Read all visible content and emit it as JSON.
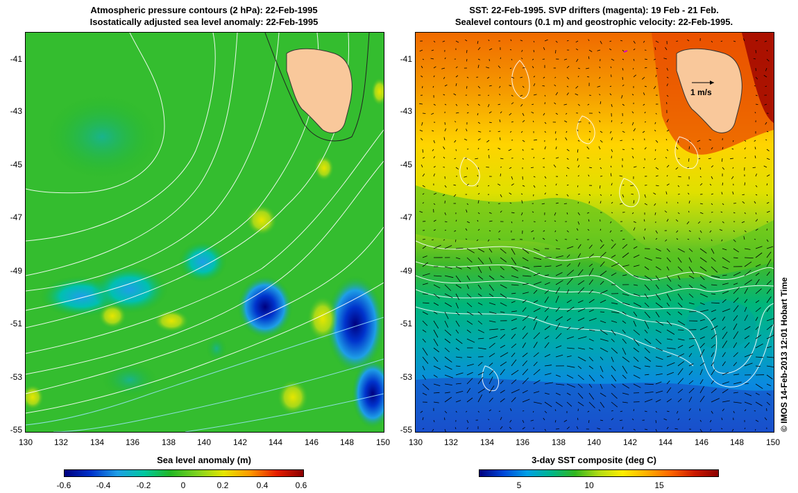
{
  "left_panel": {
    "title_line1": "Atmospheric pressure contours (2 hPa): 22-Feb-1995",
    "title_line2": "Isostatically adjusted sea level anomaly: 22-Feb-1995",
    "colorbar_label": "Sea level anomaly (m)",
    "colorbar_ticks": [
      "-0.6",
      "-0.4",
      "-0.2",
      "0",
      "0.2",
      "0.4",
      "0.6"
    ]
  },
  "right_panel": {
    "title_line1": "SST: 22-Feb-1995. SVP drifters (magenta): 19 Feb - 21 Feb.",
    "title_line2": "Sealevel contours (0.1 m) and geostrophic velocity: 22-Feb-1995.",
    "colorbar_label": "3-day SST composite (deg C)",
    "colorbar_ticks": [
      "5",
      "10",
      "15"
    ],
    "velocity_scale_label": "1 m/s"
  },
  "axes": {
    "lat_ticks": [
      "-41",
      "-43",
      "-45",
      "-47",
      "-49",
      "-51",
      "-53",
      "-55"
    ],
    "lon_ticks": [
      "130",
      "132",
      "134",
      "136",
      "138",
      "140",
      "142",
      "144",
      "146",
      "148",
      "150"
    ]
  },
  "credit": "© IMOS 14-Feb-2013 12:01 Hobart Time",
  "colors": {
    "land": "#f9c89b",
    "sla_scale": [
      "#00007f",
      "#0033cc",
      "#1e9fe6",
      "#00c8a0",
      "#23b723",
      "#7fd320",
      "#e6e600",
      "#ff9900",
      "#e61e00",
      "#8b0000"
    ],
    "sst_scale": [
      "#00007f",
      "#0047d9",
      "#00a0e6",
      "#00b68c",
      "#31b61f",
      "#b2dc14",
      "#ffee00",
      "#ffb000",
      "#ff6600",
      "#cc1a00",
      "#8b0000"
    ]
  }
}
